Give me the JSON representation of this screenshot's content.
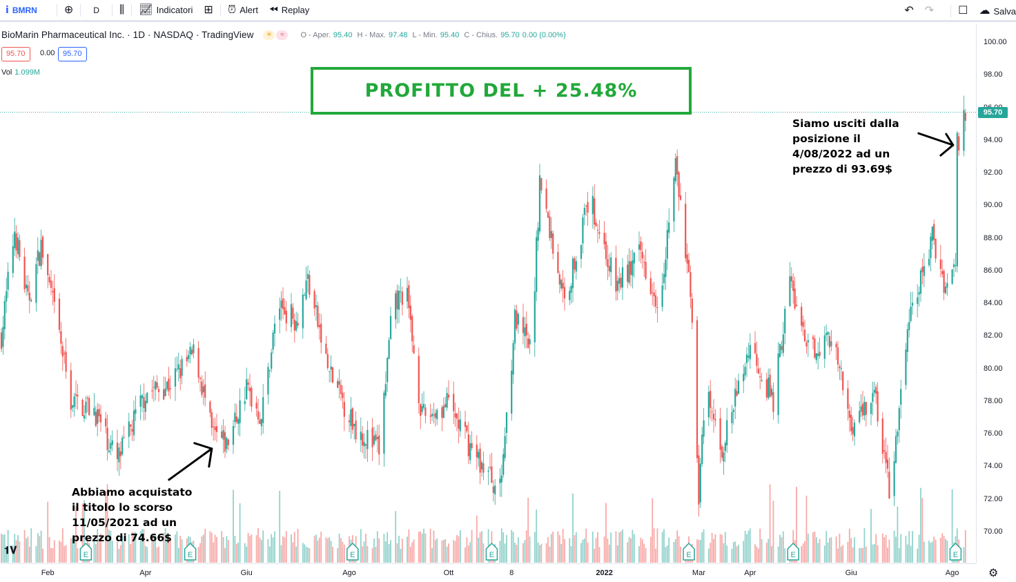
{
  "toolbar": {
    "symbol": "BMRN",
    "interval": "D",
    "indicators_label": "Indicatori",
    "alert_label": "Alert",
    "replay_label": "Replay",
    "save_label": "Salva"
  },
  "legend": {
    "title": "BioMarin Pharmaceutical Inc. · 1D · NASDAQ · TradingView",
    "open_label": "O - Aper.",
    "open": "95.40",
    "high_label": "H - Max.",
    "high": "97.48",
    "low_label": "L - Min.",
    "low": "95.40",
    "close_label": "C - Chius.",
    "close": "95.70",
    "change": "0.00 (0.00%)",
    "bid": "95.70",
    "spread": "0.00",
    "ask": "95.70",
    "volume_label": "Vol",
    "volume": "1.099M"
  },
  "annotations": {
    "profit": "PROFITTO DEL + 25.48%",
    "buy_note": "Abbiamo acquistato\nil titolo lo scorso\n11/05/2021 ad un\nprezzo di 74.66$",
    "sell_note": "Siamo usciti dalla\nposizione il\n4/08/2022 ad un\nprezzo di 93.69$"
  },
  "colors": {
    "up": "#26a69a",
    "down": "#ef5350",
    "profit": "#22a83a",
    "accent": "#2962ff"
  },
  "chart_data": {
    "type": "candlestick",
    "title": "",
    "ylim": [
      68.5,
      101.5
    ],
    "y_ticks": [
      "100.00",
      "98.00",
      "96.00",
      "94.00",
      "92.00",
      "90.00",
      "88.00",
      "86.00",
      "84.00",
      "82.00",
      "80.00",
      "78.00",
      "76.00",
      "74.00",
      "72.00",
      "70.00"
    ],
    "x_ticks": [
      "Feb",
      "Apr",
      "Giu",
      "Ago",
      "Ott",
      "8",
      "2022",
      "Mar",
      "Apr",
      "Giu",
      "Ago"
    ],
    "last_price": "95.70",
    "grid": false,
    "earnings_marker": "E",
    "price_path": [
      {
        "date": "2021-01-04",
        "price": 82.0
      },
      {
        "date": "2021-01-12",
        "price": 88.5
      },
      {
        "date": "2021-01-20",
        "price": 84.0
      },
      {
        "date": "2021-01-28",
        "price": 87.5
      },
      {
        "date": "2021-02-08",
        "price": 82.0
      },
      {
        "date": "2021-02-15",
        "price": 78.0
      },
      {
        "date": "2021-03-01",
        "price": 77.5
      },
      {
        "date": "2021-03-15",
        "price": 74.3
      },
      {
        "date": "2021-04-01",
        "price": 78.5
      },
      {
        "date": "2021-04-15",
        "price": 79.0
      },
      {
        "date": "2021-05-01",
        "price": 81.0
      },
      {
        "date": "2021-05-11",
        "price": 76.0
      },
      {
        "date": "2021-05-20",
        "price": 75.3
      },
      {
        "date": "2021-06-01",
        "price": 78.8
      },
      {
        "date": "2021-06-10",
        "price": 77.0
      },
      {
        "date": "2021-06-20",
        "price": 84.0
      },
      {
        "date": "2021-07-01",
        "price": 83.0
      },
      {
        "date": "2021-07-08",
        "price": 85.5
      },
      {
        "date": "2021-07-20",
        "price": 80.0
      },
      {
        "date": "2021-08-05",
        "price": 76.5
      },
      {
        "date": "2021-08-20",
        "price": 75.0
      },
      {
        "date": "2021-08-28",
        "price": 83.5
      },
      {
        "date": "2021-09-05",
        "price": 85.0
      },
      {
        "date": "2021-09-15",
        "price": 77.0
      },
      {
        "date": "2021-10-01",
        "price": 77.8
      },
      {
        "date": "2021-10-15",
        "price": 75.0
      },
      {
        "date": "2021-11-01",
        "price": 72.5
      },
      {
        "date": "2021-11-10",
        "price": 83.0
      },
      {
        "date": "2021-11-20",
        "price": 81.0
      },
      {
        "date": "2021-11-25",
        "price": 91.5
      },
      {
        "date": "2021-12-10",
        "price": 84.0
      },
      {
        "date": "2021-12-25",
        "price": 90.5
      },
      {
        "date": "2022-01-10",
        "price": 85.0
      },
      {
        "date": "2022-01-25",
        "price": 87.0
      },
      {
        "date": "2022-02-05",
        "price": 84.0
      },
      {
        "date": "2022-02-15",
        "price": 92.5
      },
      {
        "date": "2022-02-25",
        "price": 83.5
      },
      {
        "date": "2022-03-01",
        "price": 72.0
      },
      {
        "date": "2022-03-05",
        "price": 78.5
      },
      {
        "date": "2022-03-15",
        "price": 75.0
      },
      {
        "date": "2022-04-01",
        "price": 81.5
      },
      {
        "date": "2022-04-15",
        "price": 78.0
      },
      {
        "date": "2022-04-25",
        "price": 85.5
      },
      {
        "date": "2022-05-05",
        "price": 81.0
      },
      {
        "date": "2022-05-20",
        "price": 82.0
      },
      {
        "date": "2022-06-01",
        "price": 76.5
      },
      {
        "date": "2022-06-15",
        "price": 78.5
      },
      {
        "date": "2022-06-25",
        "price": 72.0
      },
      {
        "date": "2022-07-05",
        "price": 82.5
      },
      {
        "date": "2022-07-20",
        "price": 88.0
      },
      {
        "date": "2022-07-28",
        "price": 85.0
      },
      {
        "date": "2022-08-03",
        "price": 86.5
      },
      {
        "date": "2022-08-04",
        "price": 93.7
      },
      {
        "date": "2022-08-09",
        "price": 95.7
      }
    ],
    "trade": {
      "buy_date": "2021-05-11",
      "buy_price": 74.66,
      "sell_date": "2022-08-04",
      "sell_price": 93.69
    }
  }
}
